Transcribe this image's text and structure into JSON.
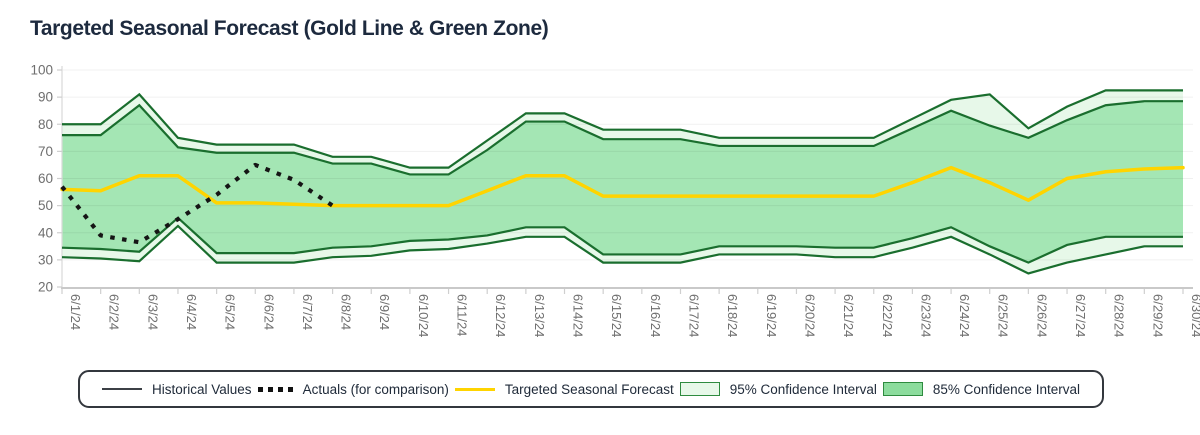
{
  "title": "Targeted Seasonal Forecast (Gold Line & Green Zone)",
  "colors": {
    "title_text": "#1d2a3e",
    "axis_text": "#6e6e6e",
    "band_stroke": "#1a6e2e",
    "band95_fill": "#e7f8e9",
    "band85_fill": "#a4e6b4",
    "gold_line": "#ffd400",
    "actuals_line": "#151515",
    "historical_line": "#3c4046",
    "legend_border": "#33373d",
    "gridline": "rgba(0,0,0,0.06)",
    "axis_line": "#c9c9c9"
  },
  "legend": {
    "items": [
      {
        "label": "Historical Values",
        "swatch": "thin-dark-line"
      },
      {
        "label": "Actuals (for comparison)",
        "swatch": "dotted-black-line"
      },
      {
        "label": "Targeted Seasonal Forecast",
        "swatch": "gold-line"
      },
      {
        "label": "95% Confidence Interval",
        "swatch": "light-green-rect"
      },
      {
        "label": "85% Confidence Interval",
        "swatch": "medium-green-rect"
      }
    ]
  },
  "chart_data": {
    "type": "area",
    "title": "Targeted Seasonal Forecast (Gold Line & Green Zone)",
    "xlabel": "",
    "ylabel": "",
    "ylim": [
      20,
      100
    ],
    "yticks": [
      100,
      90,
      80,
      70,
      60,
      50,
      40,
      30,
      20
    ],
    "grid": true,
    "legend_position": "bottom",
    "x": [
      "6/1/24",
      "6/2/24",
      "6/3/24",
      "6/4/24",
      "6/5/24",
      "6/6/24",
      "6/7/24",
      "6/8/24",
      "6/9/24",
      "6/10/24",
      "6/11/24",
      "6/12/24",
      "6/13/24",
      "6/14/24",
      "6/15/24",
      "6/16/24",
      "6/17/24",
      "6/18/24",
      "6/19/24",
      "6/20/24",
      "6/21/24",
      "6/22/24",
      "6/23/24",
      "6/24/24",
      "6/25/24",
      "6/26/24",
      "6/27/24",
      "6/28/24",
      "6/29/24",
      "6/30/24"
    ],
    "series": [
      {
        "name": "Historical Values",
        "type": "line",
        "color": "#3c4046",
        "values": []
      },
      {
        "name": "Actuals (for comparison)",
        "type": "dotted-line",
        "color": "#151515",
        "values": [
          57,
          39,
          36.5,
          45,
          54,
          65,
          59.5,
          50
        ]
      },
      {
        "name": "Targeted Seasonal Forecast",
        "type": "line",
        "color": "#ffd400",
        "values": [
          56,
          55.5,
          61,
          61,
          51,
          51,
          50.5,
          50,
          50,
          50,
          50,
          55.5,
          61,
          61,
          53.5,
          53.5,
          53.5,
          53.5,
          53.5,
          53.5,
          53.5,
          53.5,
          58.5,
          64,
          58.5,
          52,
          60,
          62.5,
          63.5,
          64
        ]
      },
      {
        "name": "95% Confidence Interval",
        "type": "band",
        "fill": "#e7f8e9",
        "stroke": "#1a6e2e",
        "upper": [
          80,
          80,
          91,
          75,
          72.5,
          72.5,
          72.5,
          68,
          68,
          64,
          64,
          74,
          84,
          84,
          78,
          78,
          78,
          75,
          75,
          75,
          75,
          75,
          82,
          89,
          91,
          78.5,
          86.5,
          92.5,
          92.5,
          92.5
        ],
        "lower": [
          31,
          30.5,
          29.5,
          42.5,
          29,
          29,
          29,
          31,
          31.5,
          33.5,
          34,
          36,
          38.5,
          38.5,
          29,
          29,
          29,
          32,
          32,
          32,
          31,
          31,
          34.5,
          38.5,
          32,
          25,
          29,
          32,
          35,
          35
        ]
      },
      {
        "name": "85% Confidence Interval",
        "type": "band",
        "fill": "#a4e6b4",
        "stroke": "#1a6e2e",
        "upper": [
          76,
          76,
          87,
          71.5,
          69.5,
          69.5,
          69.5,
          65.5,
          65.5,
          61.5,
          61.5,
          70.5,
          81,
          81,
          74.5,
          74.5,
          74.5,
          72,
          72,
          72,
          72,
          72,
          78.5,
          85,
          79.5,
          75,
          81.5,
          87,
          88.5,
          88.5
        ],
        "lower": [
          34.5,
          34,
          33,
          45.5,
          32.5,
          32.5,
          32.5,
          34.5,
          35,
          37,
          37.5,
          39,
          42,
          42,
          32,
          32,
          32,
          35,
          35,
          35,
          34.5,
          34.5,
          38,
          42,
          35,
          29,
          35.5,
          38.5,
          38.5,
          38.5
        ]
      }
    ]
  }
}
